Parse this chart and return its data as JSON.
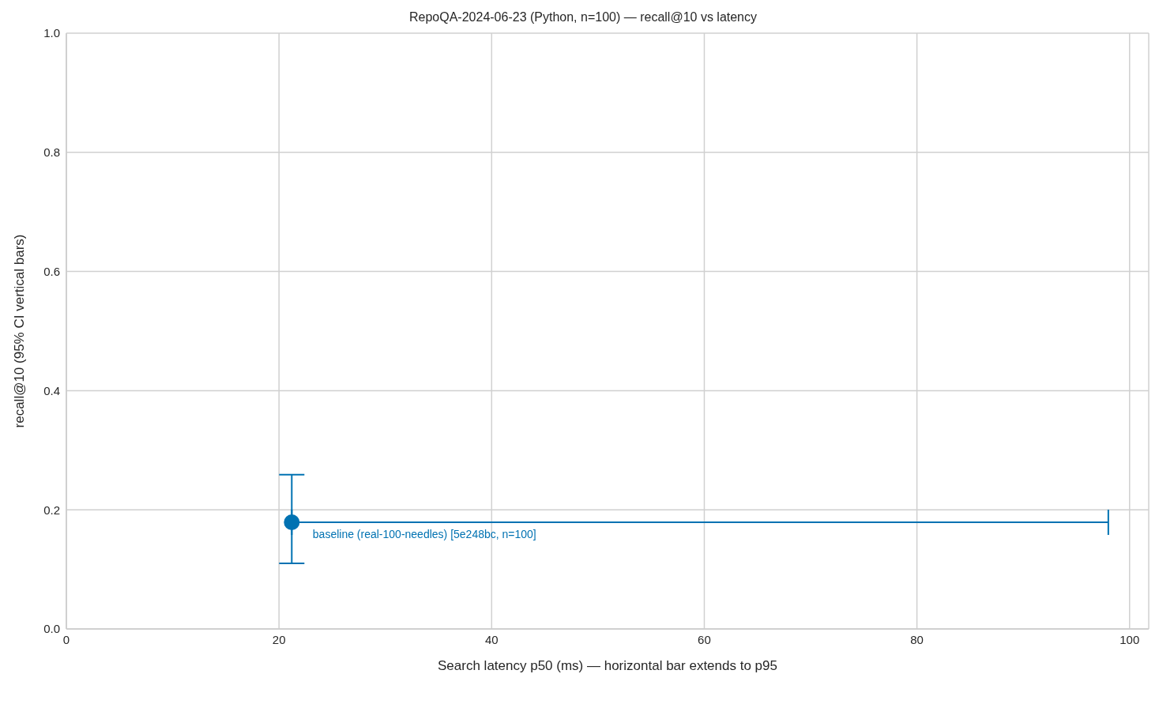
{
  "chart_data": {
    "type": "scatter",
    "title": "RepoQA-2024-06-23 (Python, n=100) — recall@10 vs latency",
    "xlabel": "Search latency p50 (ms)  — horizontal bar extends to p95",
    "ylabel": "recall@10  (95% CI vertical bars)",
    "x": [
      21.2
    ],
    "series": [
      {
        "name": "baseline (real-100-needles) [5e248bc, n=100]",
        "color": "#0072b2",
        "values": [
          0.179
        ],
        "errors": [
          [
            0.11,
            0.259
          ]
        ],
        "xerrors": [
          [
            21.2,
            98.0
          ]
        ]
      }
    ],
    "xlim": [
      0,
      101.8
    ],
    "xticks": [
      0,
      20,
      40,
      60,
      80,
      100
    ],
    "ylim": [
      0,
      1.0
    ],
    "yticks": [
      {
        "value": 0,
        "label": "0.0"
      },
      {
        "value": 0.2,
        "label": "0.2"
      },
      {
        "value": 0.4,
        "label": "0.4"
      },
      {
        "value": 0.6,
        "label": "0.6"
      },
      {
        "value": 0.8,
        "label": "0.8"
      },
      {
        "value": 1.0,
        "label": "1.0"
      }
    ],
    "grid": true,
    "marker": "circle",
    "legend": false
  }
}
